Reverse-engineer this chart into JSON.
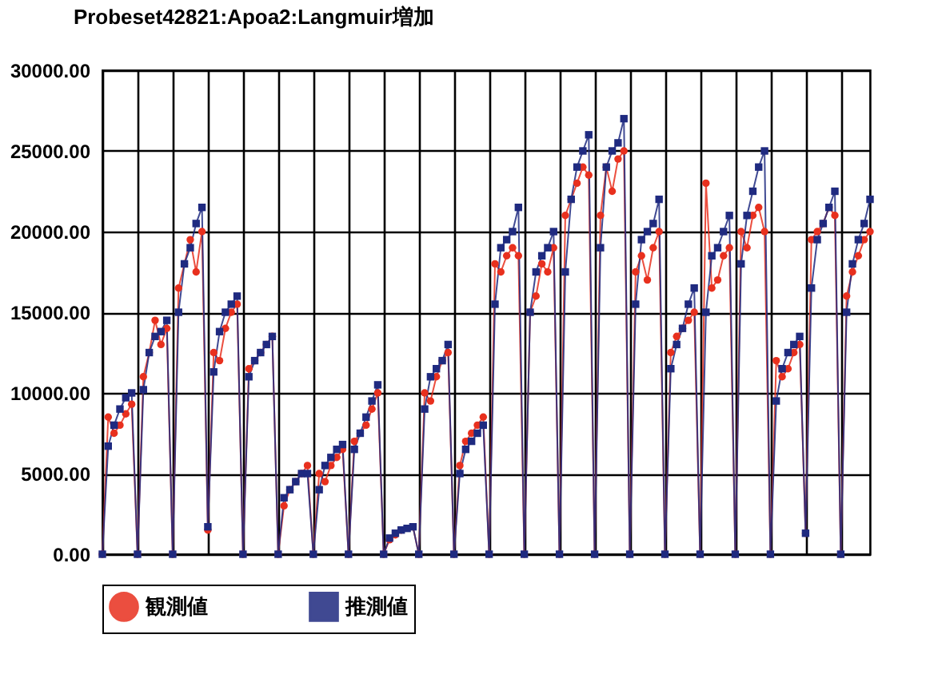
{
  "chart_data": {
    "type": "line",
    "title": "Probeset42821:Apoa2:Langmuir増加",
    "categories": [
      null,
      null,
      null,
      null,
      null,
      null,
      null,
      null,
      null,
      null,
      null,
      null,
      null,
      null,
      null,
      null,
      null,
      null,
      null,
      null,
      null,
      null,
      null,
      null,
      null,
      null,
      null,
      null,
      null,
      null,
      null,
      null,
      null,
      null,
      null,
      null,
      null,
      null,
      null,
      null,
      null,
      null,
      null,
      null,
      null,
      null,
      null,
      null,
      null,
      null,
      null,
      null,
      null,
      null,
      null,
      null,
      null,
      null,
      null,
      null,
      null,
      null,
      null,
      null,
      null,
      null,
      null,
      null,
      null,
      null,
      null,
      null,
      null,
      null,
      null,
      null,
      null,
      null,
      null,
      null,
      null,
      null,
      null,
      null,
      null,
      null,
      null,
      null,
      null,
      null,
      null,
      null,
      null,
      null,
      null,
      null,
      null,
      null,
      null,
      null,
      null,
      null,
      null,
      null,
      null,
      null,
      null,
      null,
      null,
      null,
      null,
      null,
      null,
      null,
      null,
      null,
      null,
      null,
      null,
      null,
      null,
      null,
      null,
      null,
      null,
      null,
      null,
      null,
      null,
      null,
      null,
      null
    ],
    "series": [
      {
        "name": "観測値",
        "color": "#e8301e",
        "marker": "circle",
        "values": [
          0,
          8500,
          7500,
          8000,
          8700,
          9300,
          0,
          11000,
          12500,
          14500,
          13000,
          14000,
          0,
          16500,
          18000,
          19500,
          17500,
          20000,
          1500,
          12500,
          12000,
          14000,
          15000,
          15500,
          0,
          11500,
          12000,
          12500,
          13000,
          13500,
          0,
          3000,
          4000,
          4500,
          5000,
          5500,
          0,
          5000,
          4500,
          5500,
          6000,
          6500,
          0,
          7000,
          7500,
          8000,
          9000,
          10000,
          0,
          900,
          1200,
          1500,
          null,
          1700,
          0,
          10000,
          9500,
          11000,
          12000,
          12500,
          0,
          5500,
          7000,
          7500,
          8000,
          8500,
          0,
          18000,
          17500,
          18500,
          19000,
          18500,
          0,
          15000,
          16000,
          18000,
          17500,
          19000,
          0,
          21000,
          22000,
          23000,
          24000,
          23500,
          0,
          21000,
          24000,
          22500,
          24500,
          25000,
          0,
          17500,
          18500,
          17000,
          19000,
          20000,
          0,
          12500,
          13500,
          14000,
          14500,
          15000,
          0,
          23000,
          16500,
          17000,
          18500,
          19000,
          0,
          20000,
          19000,
          21000,
          21500,
          20000,
          0,
          12000,
          11000,
          11500,
          12500,
          13000,
          1300,
          19500,
          20000,
          20500,
          21500,
          21000,
          0,
          16000,
          17500,
          18500,
          19500,
          20000
        ]
      },
      {
        "name": "推測値",
        "color": "#1f2a80",
        "marker": "square",
        "values": [
          0,
          6700,
          8000,
          9000,
          9700,
          10000,
          0,
          10200,
          12500,
          13500,
          13800,
          14500,
          0,
          15000,
          18000,
          19000,
          20500,
          21500,
          1700,
          11300,
          13800,
          15000,
          15500,
          16000,
          0,
          11000,
          12000,
          12500,
          13000,
          13500,
          0,
          3500,
          4000,
          4500,
          5000,
          5000,
          0,
          4000,
          5500,
          6000,
          6500,
          6800,
          0,
          6500,
          7500,
          8500,
          9500,
          10500,
          0,
          1000,
          1300,
          1500,
          1600,
          1700,
          0,
          9000,
          11000,
          11500,
          12000,
          13000,
          0,
          5000,
          6500,
          7000,
          7500,
          8000,
          0,
          15500,
          19000,
          19500,
          20000,
          21500,
          0,
          15000,
          17500,
          18500,
          19000,
          20000,
          0,
          17500,
          22000,
          24000,
          25000,
          26000,
          0,
          19000,
          24000,
          25000,
          25500,
          27000,
          0,
          15500,
          19500,
          20000,
          20500,
          22000,
          0,
          11500,
          13000,
          14000,
          15500,
          16500,
          0,
          15000,
          18500,
          19000,
          20000,
          21000,
          0,
          18000,
          21000,
          22500,
          24000,
          25000,
          0,
          9500,
          11500,
          12500,
          13000,
          13500,
          1300,
          16500,
          19500,
          20500,
          21500,
          22500,
          0,
          15000,
          18000,
          19500,
          20500,
          22000
        ]
      }
    ],
    "ylim": [
      0,
      30000
    ],
    "yticks": [
      {
        "value": 0,
        "label": "0.00"
      },
      {
        "value": 5000,
        "label": "5000.00"
      },
      {
        "value": 10000,
        "label": "10000.00"
      },
      {
        "value": 15000,
        "label": "15000.00"
      },
      {
        "value": 20000,
        "label": "20000.00"
      },
      {
        "value": 25000,
        "label": "25000.00"
      },
      {
        "value": 30000,
        "label": "30000.00"
      }
    ],
    "grid": true,
    "legend": "bottom",
    "tick_labels": "y",
    "line_style": "solid"
  }
}
